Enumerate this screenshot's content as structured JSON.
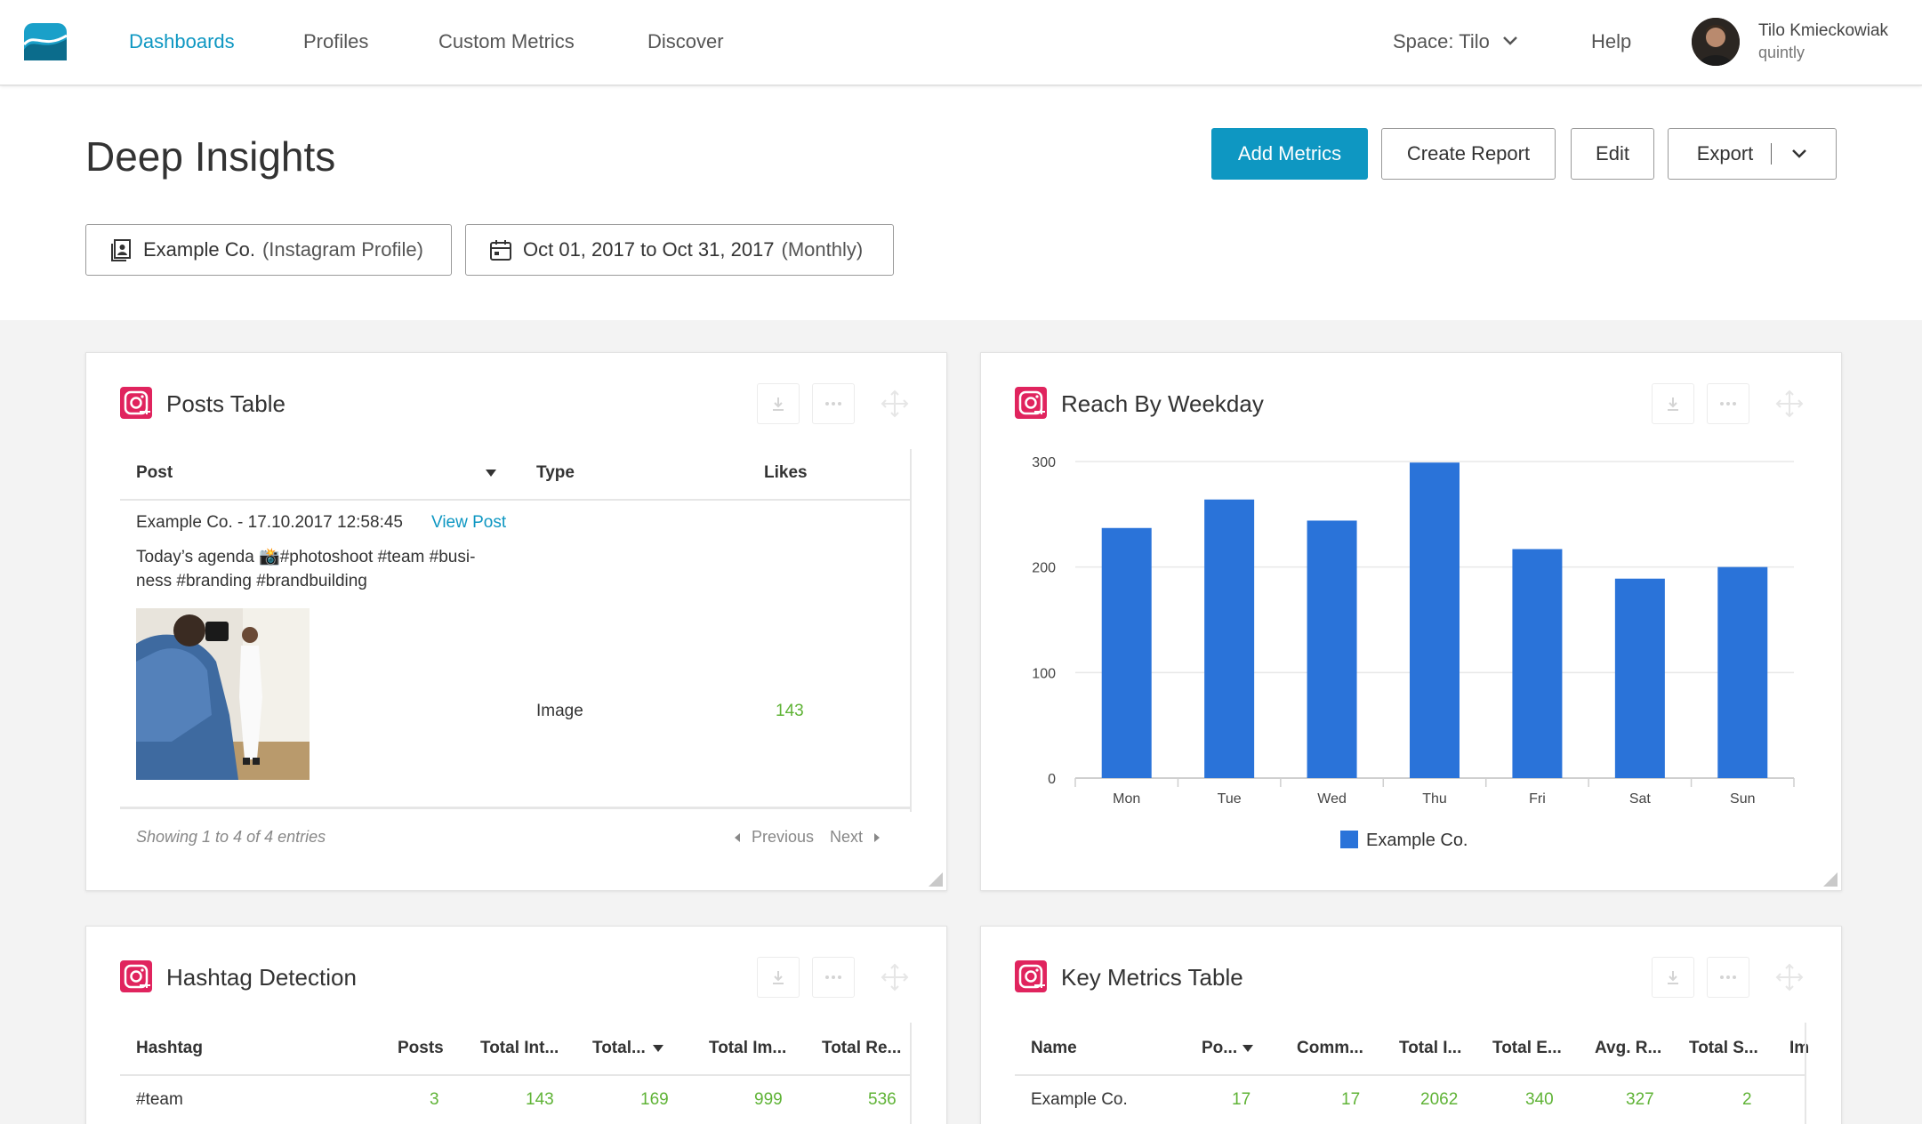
{
  "nav": {
    "items": [
      "Dashboards",
      "Profiles",
      "Custom Metrics",
      "Discover"
    ],
    "space": "Space: Tilo",
    "help": "Help",
    "user_name": "Tilo Kmieckowiak",
    "user_org": "quintly"
  },
  "header": {
    "title": "Deep Insights",
    "add_metrics": "Add Metrics",
    "create_report": "Create Report",
    "edit": "Edit",
    "export": "Export",
    "profile_filter_name": "Example Co.",
    "profile_filter_type": "(Instagram Profile)",
    "date_filter_range": "Oct 01, 2017 to Oct 31, 2017",
    "date_filter_period": "(Monthly)"
  },
  "posts_table": {
    "title": "Posts Table",
    "columns": [
      "Post",
      "Type",
      "Likes"
    ],
    "row": {
      "author_date": "Example Co. - 17.10.2017 12:58:45",
      "view_post": "View Post",
      "caption_line1": "Today’s agenda 📸#photoshoot #team #busi-",
      "caption_line2": "ness #branding #brandbuilding",
      "type": "Image",
      "likes": "143"
    },
    "footer": "Showing 1 to 4 of 4 entries",
    "prev": "Previous",
    "next": "Next"
  },
  "reach_chart": {
    "title": "Reach By Weekday"
  },
  "chart_data": {
    "type": "bar",
    "categories": [
      "Mon",
      "Tue",
      "Wed",
      "Thu",
      "Fri",
      "Sat",
      "Sun"
    ],
    "series": [
      {
        "name": "Example Co.",
        "values": [
          237,
          264,
          244,
          299,
          217,
          189,
          200
        ],
        "color": "#2a73d9"
      }
    ],
    "ylim": [
      0,
      300
    ],
    "yticks": [
      0,
      100,
      200,
      300
    ],
    "grid": true,
    "legend": "bottom",
    "title": "Reach By Weekday",
    "xlabel": "",
    "ylabel": ""
  },
  "hashtag_table": {
    "title": "Hashtag Detection",
    "columns": [
      "Hashtag",
      "Posts",
      "Total Int...",
      "Total...",
      "Total Im...",
      "Total Re..."
    ],
    "row": [
      "#team",
      "3",
      "143",
      "169",
      "999",
      "536"
    ]
  },
  "key_metrics": {
    "title": "Key Metrics Table",
    "columns": [
      "Name",
      "Po...",
      "Comm...",
      "Total I...",
      "Total E...",
      "Avg. R...",
      "Total S...",
      "Im"
    ],
    "row": [
      "Example Co.",
      "17",
      "17",
      "2062",
      "340",
      "327",
      "2"
    ]
  },
  "colors": {
    "accent": "#0e97c2",
    "bar": "#2a73d9",
    "instagram": "#e0245e",
    "positive_number": "#5fb336"
  }
}
